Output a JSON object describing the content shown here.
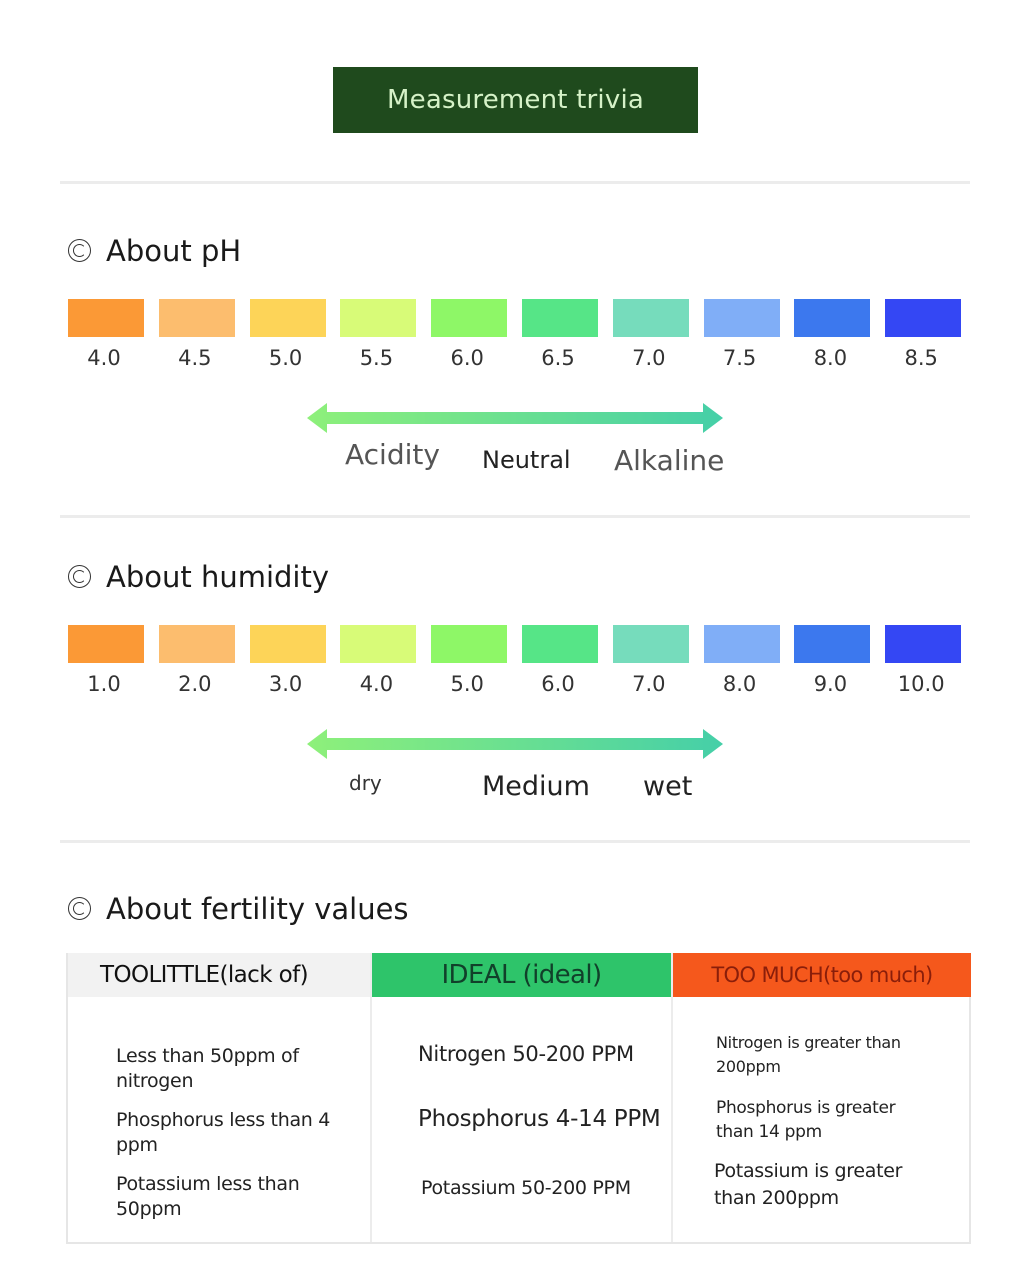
{
  "banner": {
    "title": "Measurement trivia"
  },
  "ph": {
    "title": "About pH",
    "swatches": [
      {
        "label": "4.0",
        "color": "#fb9936"
      },
      {
        "label": "4.5",
        "color": "#fcbd6e"
      },
      {
        "label": "5.0",
        "color": "#fdd458"
      },
      {
        "label": "5.5",
        "color": "#d8fb78"
      },
      {
        "label": "6.0",
        "color": "#8ef767"
      },
      {
        "label": "6.5",
        "color": "#56e587"
      },
      {
        "label": "7.0",
        "color": "#76dcbc"
      },
      {
        "label": "7.5",
        "color": "#80aef7"
      },
      {
        "label": "8.0",
        "color": "#3c78ee"
      },
      {
        "label": "8.5",
        "color": "#3447f4"
      }
    ],
    "scale": {
      "left": "Acidity",
      "middle": "Neutral",
      "right": "Alkaline"
    }
  },
  "humidity": {
    "title": "About humidity",
    "swatches": [
      {
        "label": "1.0",
        "color": "#fb9936"
      },
      {
        "label": "2.0",
        "color": "#fcbd6e"
      },
      {
        "label": "3.0",
        "color": "#fdd458"
      },
      {
        "label": "4.0",
        "color": "#d8fb78"
      },
      {
        "label": "5.0",
        "color": "#8ef767"
      },
      {
        "label": "6.0",
        "color": "#56e587"
      },
      {
        "label": "7.0",
        "color": "#76dcbc"
      },
      {
        "label": "8.0",
        "color": "#80aef7"
      },
      {
        "label": "9.0",
        "color": "#3c78ee"
      },
      {
        "label": "10.0",
        "color": "#3447f4"
      }
    ],
    "scale": {
      "left": "dry",
      "middle": "Medium",
      "right": "wet"
    }
  },
  "fertility": {
    "title": "About fertility values",
    "columns": [
      {
        "header": "TOOLITTLE(lack of)",
        "header_bg": "#f2f2f2",
        "header_color": "#111111",
        "items": [
          "Less than 50ppm of nitrogen",
          "Phosphorus less than 4 ppm",
          "Potassium less than 50ppm"
        ]
      },
      {
        "header": "IDEAL (ideal)",
        "header_bg": "#2ec46a",
        "header_color": "#11402a",
        "items": [
          "Nitrogen 50-200 PPM",
          "Phosphorus 4-14 PPM",
          "Potassium 50-200 PPM"
        ]
      },
      {
        "header": "TOO MUCH(too much)",
        "header_bg": "#f5581c",
        "header_color": "#8a1e0a",
        "items": [
          "Nitrogen is greater than 200ppm",
          "Phosphorus is greater than 14 ppm",
          "Potassium is greater than 200ppm"
        ]
      }
    ]
  },
  "colors": {
    "banner_bg": "#1f4a1d",
    "arrow_start": "#8ef07a",
    "arrow_end": "#45cfa8"
  }
}
